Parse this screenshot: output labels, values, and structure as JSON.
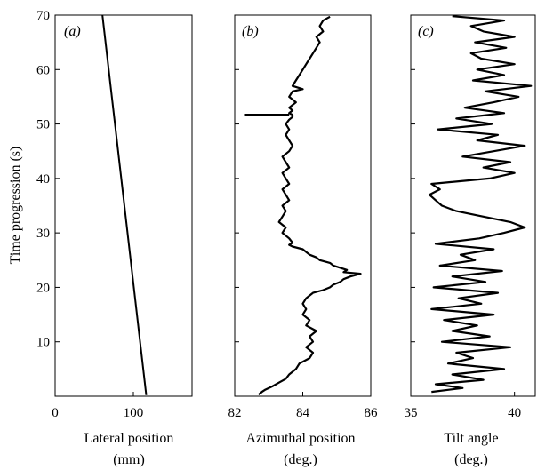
{
  "chart_data": [
    {
      "type": "line",
      "panel_label": "(a)",
      "xlabel": [
        "Lateral position",
        "(mm)"
      ],
      "ylabel": "Time progression (s)",
      "xlim": [
        0,
        175
      ],
      "ylim": [
        0,
        70
      ],
      "xticks": [
        0,
        100
      ],
      "yticks": [
        10,
        20,
        30,
        40,
        50,
        60,
        70
      ],
      "series": [
        {
          "x": [
            116.5,
            60.5
          ],
          "y": [
            0.2,
            70
          ]
        }
      ]
    },
    {
      "type": "line",
      "panel_label": "(b)",
      "xlabel": [
        "Azimuthal position",
        "(deg.)"
      ],
      "ylabel": "",
      "xlim": [
        82,
        86
      ],
      "ylim": [
        0,
        70
      ],
      "xticks": [
        82,
        84,
        86
      ],
      "yticks": [
        10,
        20,
        30,
        40,
        50,
        60,
        70
      ],
      "series": [
        {
          "y": [
            0.3,
            0.8,
            1.2,
            1.8,
            2.5,
            3.2,
            4.0,
            5.0,
            6.0,
            7.0,
            8.0,
            9.0,
            10.0,
            11.0,
            12.0,
            13.0,
            14.0,
            15.0,
            16.0,
            17.0,
            18.0,
            18.5,
            19.0,
            19.5,
            20.0,
            20.5,
            21.0,
            21.5,
            22.0,
            22.5,
            22.8,
            23.2,
            23.6,
            24.0,
            24.5,
            25.0,
            25.5,
            26.0,
            26.5,
            27.0,
            27.5,
            27.8,
            28.2,
            29.0,
            30.0,
            31.0,
            32.0,
            33.0,
            34.0,
            35.0,
            36.0,
            37.0,
            38.0,
            39.0,
            40.0,
            41.0,
            42.0,
            43.0,
            44.0,
            45.0,
            46.0,
            47.0,
            48.0,
            49.0,
            50.0,
            50.8,
            51.3,
            51.7,
            52.0,
            52.5,
            53.0,
            54.0,
            55.0,
            56.0,
            56.4,
            57.0,
            58.0,
            59.0,
            60.0,
            61.0,
            62.0,
            63.0,
            64.0,
            65.0,
            66.0,
            67.0,
            68.0,
            69.0,
            69.7
          ],
          "x": [
            82.7,
            82.8,
            82.9,
            83.1,
            83.3,
            83.5,
            83.6,
            83.8,
            83.9,
            84.2,
            84.3,
            84.1,
            84.3,
            84.2,
            84.4,
            84.1,
            84.2,
            84.0,
            84.1,
            84.0,
            84.1,
            84.2,
            84.3,
            84.6,
            84.8,
            84.9,
            85.1,
            85.2,
            85.4,
            85.7,
            85.2,
            85.3,
            85.1,
            84.9,
            84.8,
            84.5,
            84.4,
            84.2,
            84.1,
            84.0,
            83.7,
            83.6,
            83.7,
            83.6,
            83.4,
            83.5,
            83.3,
            83.4,
            83.5,
            83.4,
            83.6,
            83.5,
            83.4,
            83.6,
            83.5,
            83.4,
            83.6,
            83.5,
            83.4,
            83.6,
            83.7,
            83.6,
            83.5,
            83.6,
            83.5,
            83.6,
            83.7,
            83.7,
            83.6,
            83.7,
            83.6,
            83.8,
            83.6,
            83.7,
            84.0,
            83.7,
            83.8,
            83.9,
            84.0,
            84.1,
            84.2,
            84.3,
            84.4,
            84.5,
            84.4,
            84.6,
            84.5,
            84.6,
            84.8
          ]
        }
      ],
      "spike": {
        "x": [
          82.3,
          83.6
        ],
        "y": 51.7
      }
    },
    {
      "type": "line",
      "panel_label": "(c)",
      "xlabel": [
        "Tilt angle",
        "(deg.)"
      ],
      "ylabel": "",
      "xlim": [
        35,
        41
      ],
      "ylim": [
        0,
        70
      ],
      "xticks": [
        35,
        40
      ],
      "yticks": [
        10,
        20,
        30,
        40,
        50,
        60,
        70
      ],
      "series": [
        {
          "y": [
            0.8,
            1.5,
            2.2,
            3.0,
            4.0,
            5.0,
            6.0,
            7.0,
            8.0,
            9.0,
            10.0,
            11.0,
            12.0,
            13.0,
            14.0,
            15.0,
            16.0,
            17.0,
            18.0,
            19.0,
            20.0,
            21.0,
            22.0,
            23.0,
            24.0,
            25.0,
            26.0,
            27.0,
            28.0,
            29.0,
            30.0,
            31.0,
            32.0,
            33.0,
            34.0,
            35.0,
            36.0,
            37.0,
            38.0,
            39.0,
            40.0,
            41.0,
            42.0,
            43.0,
            44.0,
            45.0,
            46.0,
            47.0,
            48.0,
            49.0,
            50.0,
            51.0,
            52.0,
            53.0,
            54.0,
            55.0,
            56.0,
            57.0,
            58.0,
            59.0,
            60.0,
            61.0,
            62.0,
            63.0,
            64.0,
            65.0,
            66.0,
            67.0,
            68.0,
            69.0,
            69.8
          ],
          "x": [
            36.0,
            37.5,
            36.2,
            38.5,
            37.0,
            39.5,
            36.8,
            38.0,
            37.2,
            39.8,
            36.5,
            38.8,
            37.0,
            38.2,
            36.6,
            39.0,
            36.0,
            38.4,
            37.3,
            39.2,
            36.1,
            38.6,
            37.0,
            39.4,
            36.4,
            38.1,
            37.4,
            39.0,
            36.2,
            38.3,
            39.5,
            40.5,
            39.8,
            38.5,
            37.2,
            36.5,
            36.2,
            35.9,
            36.4,
            36.0,
            38.8,
            40.0,
            38.5,
            39.8,
            37.5,
            39.0,
            40.5,
            38.2,
            39.2,
            36.3,
            38.9,
            37.2,
            39.5,
            37.6,
            39.0,
            40.2,
            38.6,
            40.8,
            38.0,
            39.5,
            38.2,
            40.0,
            38.4,
            37.9,
            39.6,
            38.1,
            40.0,
            38.5,
            37.9,
            39.5,
            37.0
          ]
        }
      ]
    }
  ]
}
